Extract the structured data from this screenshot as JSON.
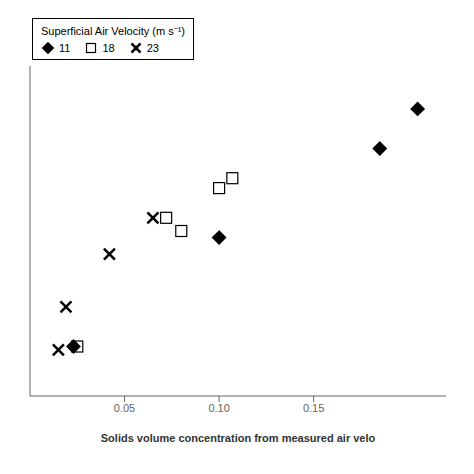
{
  "chart_data": {
    "type": "scatter",
    "xlabel": "Solids volume concentration from measured air velo",
    "legend_title": "Superficial Air Velocity (m s⁻¹)",
    "legend": "upper left",
    "tick_labels": "x",
    "xlim": [
      0.0,
      0.22
    ],
    "ylim": [
      0.0,
      1.0
    ],
    "xticks": [
      0.05,
      {
        "value": 0.1,
        "label": "0.10"
      },
      0.15
    ],
    "series": [
      {
        "name": "11",
        "marker": "diamond",
        "color": "black",
        "x": [
          0.023,
          0.1,
          0.185,
          0.205
        ],
        "values": [
          0.15,
          0.48,
          0.75,
          0.87
        ]
      },
      {
        "name": "18",
        "marker": "square-open",
        "color": "black",
        "x": [
          0.025,
          0.072,
          0.08,
          0.1,
          0.107
        ],
        "values": [
          0.15,
          0.54,
          0.5,
          0.63,
          0.66
        ]
      },
      {
        "name": "23",
        "marker": "cross",
        "color": "black",
        "x": [
          0.015,
          0.019,
          0.042,
          0.065
        ],
        "values": [
          0.14,
          0.27,
          0.43,
          0.54
        ]
      }
    ]
  }
}
